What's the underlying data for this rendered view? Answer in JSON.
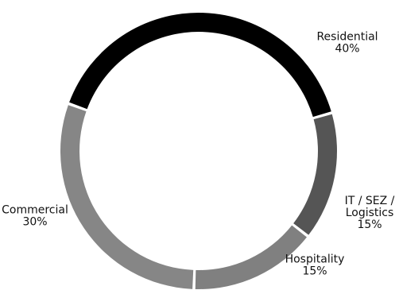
{
  "chart_data": {
    "type": "pie",
    "categories": [
      "Residential",
      "IT / SEZ / Logistics",
      "Hospitality",
      "Commercial"
    ],
    "values": [
      40,
      15,
      15,
      30
    ],
    "value_labels": [
      "40%",
      "15%",
      "15%",
      "30%"
    ],
    "label_lines": [
      [
        "Residential",
        "40%"
      ],
      [
        "IT / SEZ /",
        "Logistics",
        "15%"
      ],
      [
        "Hospitality",
        "15%"
      ],
      [
        "Commercial",
        "30%"
      ]
    ],
    "colors": [
      "#000000",
      "#555555",
      "#808080",
      "#868686"
    ],
    "donut": true,
    "legend": "none"
  }
}
